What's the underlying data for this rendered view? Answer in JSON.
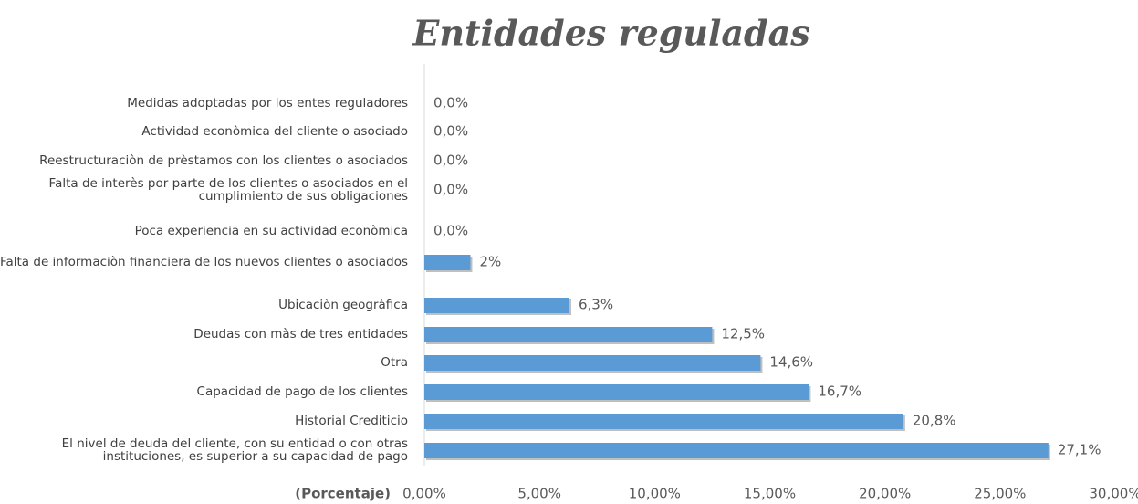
{
  "chart_data": {
    "type": "bar",
    "orientation": "horizontal",
    "title": "Entidades reguladas",
    "x_label": "(Porcentaje)",
    "categories": [
      "Medidas adoptadas por los entes reguladores",
      "Actividad econòmica del cliente o asociado",
      "Reestructuraciòn de prèstamos con los clientes o asociados",
      "Falta de interès por parte de los clientes o asociados en el cumplimiento de sus obligaciones",
      "Poca experiencia en su actividad econòmica",
      "Falta de informaciòn financiera de los nuevos clientes o asociados",
      "Ubicaciòn geogràfica",
      "Deudas con màs de tres entidades",
      "Otra",
      "Capacidad de pago de los clientes",
      "Historial Crediticio",
      "El nivel de deuda del cliente, con su entidad o con otras instituciones, es superior a su capacidad de pago"
    ],
    "values": [
      0,
      0,
      0,
      0,
      0,
      2,
      6.3,
      12.5,
      14.6,
      16.7,
      20.8,
      27.1
    ],
    "value_labels": [
      "0,0%",
      "0,0%",
      "0,0%",
      "0,0%",
      "0,0%",
      "2%",
      "6,3%",
      "12,5%",
      "14,6%",
      "16,7%",
      "20,8%",
      "27,1%"
    ],
    "color": "#5b9bd5",
    "xlim": [
      0,
      30
    ],
    "xticks": [
      {
        "value": 0,
        "label": "0,00%"
      },
      {
        "value": 5,
        "label": "5,00%"
      },
      {
        "value": 10,
        "label": "10,00%"
      },
      {
        "value": 15,
        "label": "15,00%"
      },
      {
        "value": 20,
        "label": "20,00%"
      },
      {
        "value": 25,
        "label": "25,00%"
      },
      {
        "value": 30,
        "label": "30,00%"
      }
    ],
    "grid": false
  }
}
